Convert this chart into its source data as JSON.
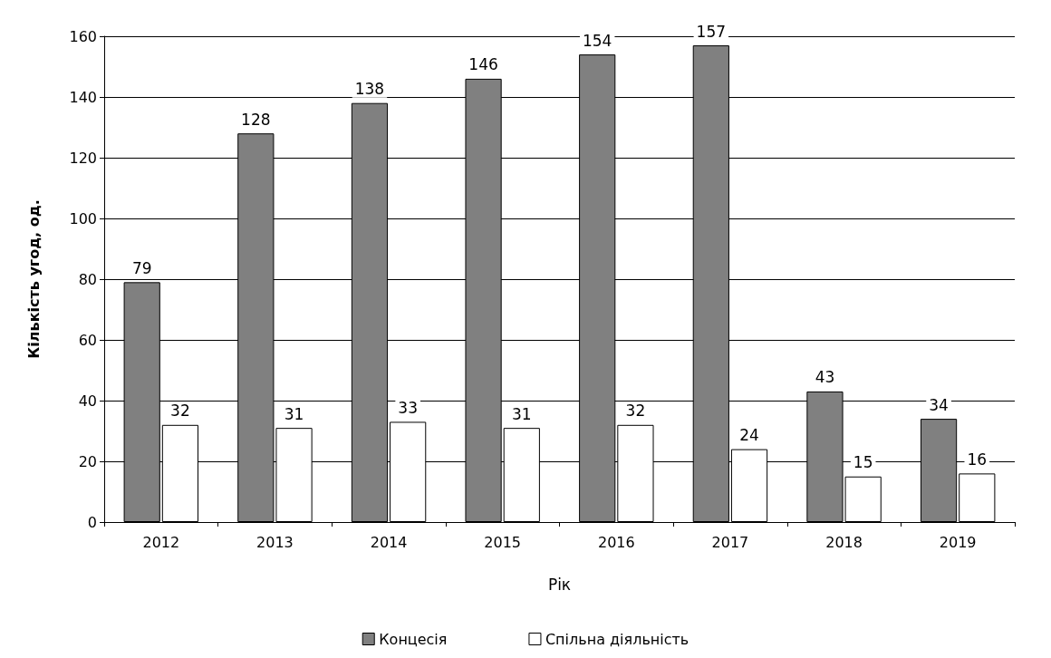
{
  "chart_data": {
    "type": "bar",
    "xlabel": "Рік",
    "ylabel": "Кількість угод, од.",
    "categories": [
      "2012",
      "2013",
      "2014",
      "2015",
      "2016",
      "2017",
      "2018",
      "2019"
    ],
    "series": [
      {
        "name": "Концесія",
        "color": "#808080",
        "values": [
          79,
          128,
          138,
          146,
          154,
          157,
          43,
          34
        ]
      },
      {
        "name": "Спільна діяльність",
        "color": "#ffffff",
        "values": [
          32,
          31,
          33,
          31,
          32,
          24,
          15,
          16
        ]
      }
    ],
    "ylim": [
      0,
      160
    ],
    "yticks": [
      0,
      20,
      40,
      60,
      80,
      100,
      120,
      140,
      160
    ],
    "grid": "y",
    "legend": "bottom",
    "data_labels": true
  }
}
